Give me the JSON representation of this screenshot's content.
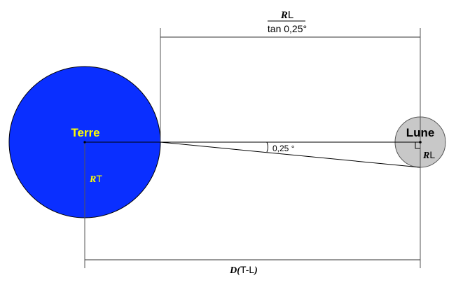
{
  "earth": {
    "name": "Terre",
    "radius_symbol": "R",
    "radius_subscript": "T",
    "fill": "#0a2fff",
    "label_color": "#ffff00"
  },
  "moon": {
    "name": "Lune",
    "radius_symbol": "R",
    "radius_subscript": "L",
    "fill": "#c8c8c8"
  },
  "formula": {
    "numerator_symbol": "R",
    "numerator_subscript": "L",
    "denominator": "tan 0,25°"
  },
  "angle_label": "0,25 °",
  "distance": {
    "symbol": "D",
    "open_paren": "(",
    "subscript": "T-L",
    "close_paren": ")"
  }
}
